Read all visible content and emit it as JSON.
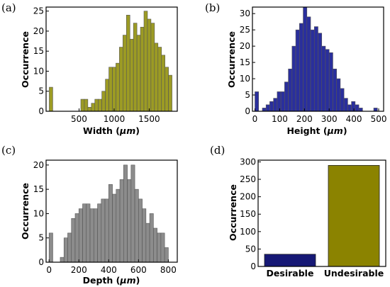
{
  "chart_data": [
    {
      "id": "a",
      "panel_label": "(a)",
      "type": "bar",
      "xlabel_main": "Width (",
      "xlabel_unit": "μm",
      "xlabel_end": ")",
      "ylabel": "Occurrence",
      "xlim": [
        30,
        1900
      ],
      "ylim": [
        0,
        26
      ],
      "xticks": [
        500,
        1000,
        1500
      ],
      "yticks": [
        0,
        5,
        10,
        15,
        20,
        25
      ],
      "bin_width": 50,
      "bin_starts": [
        75,
        525,
        575,
        625,
        675,
        725,
        775,
        825,
        875,
        925,
        975,
        1025,
        1075,
        1125,
        1175,
        1225,
        1275,
        1325,
        1375,
        1425,
        1475,
        1525,
        1575,
        1625,
        1675,
        1725,
        1775
      ],
      "counts": [
        6,
        3,
        3,
        1,
        2,
        3,
        3,
        5,
        8,
        11,
        11,
        12,
        16,
        19,
        24,
        18,
        22,
        19,
        21,
        25,
        23,
        22,
        17,
        16,
        14,
        11,
        9
      ],
      "color": "#9c9b24"
    },
    {
      "id": "b",
      "panel_label": "(b)",
      "type": "bar",
      "xlabel_main": "Height (",
      "xlabel_unit": "μm",
      "xlabel_end": ")",
      "ylabel": "Occurrence",
      "xlim": [
        -10,
        520
      ],
      "ylim": [
        0,
        32
      ],
      "xticks": [
        0,
        100,
        200,
        300,
        400,
        500
      ],
      "yticks": [
        0,
        5,
        10,
        15,
        20,
        25,
        30
      ],
      "bin_width": 15,
      "bin_starts": [
        0,
        30,
        45,
        60,
        75,
        90,
        105,
        120,
        135,
        150,
        165,
        180,
        195,
        210,
        225,
        240,
        255,
        270,
        285,
        300,
        315,
        330,
        345,
        360,
        375,
        390,
        405,
        420,
        480
      ],
      "counts": [
        6,
        1,
        2,
        3,
        4,
        6,
        6,
        9,
        13,
        20,
        25,
        27,
        32,
        29,
        25,
        26,
        24,
        20,
        19,
        18,
        13,
        10,
        7,
        4,
        2,
        3,
        2,
        1,
        1
      ],
      "color": "#2a2f9c"
    },
    {
      "id": "c",
      "panel_label": "(c)",
      "type": "bar",
      "xlabel_main": "Depth (",
      "xlabel_unit": "μm",
      "xlabel_end": ")",
      "ylabel": "Occurrence",
      "xlim": [
        -20,
        860
      ],
      "ylim": [
        0,
        21
      ],
      "xticks": [
        0,
        200,
        400,
        600,
        800
      ],
      "yticks": [
        0,
        5,
        10,
        15,
        20
      ],
      "bin_width": 25,
      "bin_starts": [
        0,
        75,
        100,
        125,
        150,
        175,
        200,
        225,
        250,
        275,
        300,
        325,
        350,
        375,
        400,
        425,
        450,
        475,
        500,
        525,
        550,
        575,
        600,
        625,
        650,
        675,
        700,
        725,
        750,
        775
      ],
      "counts": [
        6,
        1,
        5,
        6,
        9,
        10,
        11,
        12,
        12,
        11,
        11,
        12,
        13,
        13,
        16,
        14,
        15,
        17,
        20,
        17,
        20,
        15,
        13,
        11,
        8,
        10,
        7,
        6,
        6,
        3
      ],
      "color": "#8c8c8c"
    },
    {
      "id": "d",
      "panel_label": "(d)",
      "type": "bar",
      "ylabel": "Occurrence",
      "categories": [
        "Desirable",
        "Undesirable"
      ],
      "values": [
        35,
        290
      ],
      "colors": [
        "#161875",
        "#8b8300"
      ],
      "ylim": [
        0,
        305
      ],
      "yticks": [
        0,
        50,
        100,
        150,
        200,
        250,
        300
      ]
    }
  ]
}
